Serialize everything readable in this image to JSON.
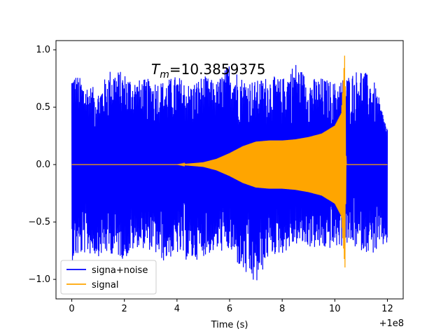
{
  "chart_data": {
    "type": "line",
    "xlabel": "Time (s)",
    "ylabel": "",
    "x_offset_label": "+1e8",
    "xlim": [
      -0.6,
      12.6
    ],
    "ylim": [
      -1.17,
      1.08
    ],
    "x_ticks": [
      {
        "value": 0,
        "label": "0"
      },
      {
        "value": 2,
        "label": "2"
      },
      {
        "value": 4,
        "label": "4"
      },
      {
        "value": 6,
        "label": "6"
      },
      {
        "value": 8,
        "label": "8"
      },
      {
        "value": 10,
        "label": "10"
      },
      {
        "value": 12,
        "label": "12"
      }
    ],
    "y_ticks": [
      {
        "value": 1.0,
        "label": "1.0"
      },
      {
        "value": 0.5,
        "label": "0.5"
      },
      {
        "value": 0.0,
        "label": "0.0"
      },
      {
        "value": -0.5,
        "label": "−0.5"
      },
      {
        "value": -1.0,
        "label": "−1.0"
      }
    ],
    "annotation": {
      "text_base": "T",
      "text_sub": "m",
      "text_value": "=10.3859375",
      "x": 3.0,
      "y": 0.8
    },
    "legend_position": "lower left",
    "grid": false,
    "series": [
      {
        "name": "signa+noise",
        "color": "#0000ff",
        "envelope": [
          {
            "x": 0.0,
            "upper": 0.83,
            "lower": -0.84
          },
          {
            "x": 0.5,
            "upper": 0.72,
            "lower": -0.78
          },
          {
            "x": 1.0,
            "upper": 0.65,
            "lower": -0.8
          },
          {
            "x": 1.5,
            "upper": 0.85,
            "lower": -0.78
          },
          {
            "x": 2.0,
            "upper": 0.8,
            "lower": -0.83
          },
          {
            "x": 2.5,
            "upper": 0.74,
            "lower": -0.72
          },
          {
            "x": 3.0,
            "upper": 0.75,
            "lower": -0.75
          },
          {
            "x": 3.5,
            "upper": 0.73,
            "lower": -0.85
          },
          {
            "x": 4.0,
            "upper": 0.78,
            "lower": -0.78
          },
          {
            "x": 4.5,
            "upper": 0.7,
            "lower": -0.86
          },
          {
            "x": 5.0,
            "upper": 0.78,
            "lower": -0.8
          },
          {
            "x": 5.5,
            "upper": 0.72,
            "lower": -0.76
          },
          {
            "x": 6.0,
            "upper": 0.9,
            "lower": -0.76
          },
          {
            "x": 6.5,
            "upper": 0.76,
            "lower": -0.95
          },
          {
            "x": 7.0,
            "upper": 0.73,
            "lower": -1.07
          },
          {
            "x": 7.5,
            "upper": 0.78,
            "lower": -0.8
          },
          {
            "x": 8.0,
            "upper": 0.75,
            "lower": -0.78
          },
          {
            "x": 8.5,
            "upper": 0.9,
            "lower": -0.7
          },
          {
            "x": 9.0,
            "upper": 0.75,
            "lower": -0.72
          },
          {
            "x": 9.5,
            "upper": 0.76,
            "lower": -0.75
          },
          {
            "x": 10.0,
            "upper": 0.72,
            "lower": -0.73
          },
          {
            "x": 10.5,
            "upper": 0.78,
            "lower": -0.7
          },
          {
            "x": 11.0,
            "upper": 0.85,
            "lower": -0.75
          },
          {
            "x": 11.5,
            "upper": 0.72,
            "lower": -0.78
          },
          {
            "x": 12.0,
            "upper": 0.33,
            "lower": -0.7
          }
        ]
      },
      {
        "name": "signal",
        "color": "#ffa500",
        "envelope": [
          {
            "x": 0.0,
            "upper": 0.0,
            "lower": 0.0
          },
          {
            "x": 4.0,
            "upper": 0.0,
            "lower": 0.0
          },
          {
            "x": 5.0,
            "upper": 0.02,
            "lower": -0.02
          },
          {
            "x": 5.5,
            "upper": 0.05,
            "lower": -0.05
          },
          {
            "x": 6.0,
            "upper": 0.1,
            "lower": -0.1
          },
          {
            "x": 6.5,
            "upper": 0.16,
            "lower": -0.16
          },
          {
            "x": 7.0,
            "upper": 0.2,
            "lower": -0.2
          },
          {
            "x": 7.5,
            "upper": 0.21,
            "lower": -0.21
          },
          {
            "x": 8.0,
            "upper": 0.21,
            "lower": -0.21
          },
          {
            "x": 8.5,
            "upper": 0.22,
            "lower": -0.22
          },
          {
            "x": 9.0,
            "upper": 0.24,
            "lower": -0.24
          },
          {
            "x": 9.5,
            "upper": 0.27,
            "lower": -0.27
          },
          {
            "x": 10.0,
            "upper": 0.34,
            "lower": -0.34
          },
          {
            "x": 10.25,
            "upper": 0.45,
            "lower": -0.45
          },
          {
            "x": 10.386,
            "upper": 1.0,
            "lower": -0.91
          },
          {
            "x": 10.43,
            "upper": 0.0,
            "lower": 0.0
          },
          {
            "x": 12.0,
            "upper": 0.0,
            "lower": 0.0
          }
        ]
      }
    ]
  }
}
